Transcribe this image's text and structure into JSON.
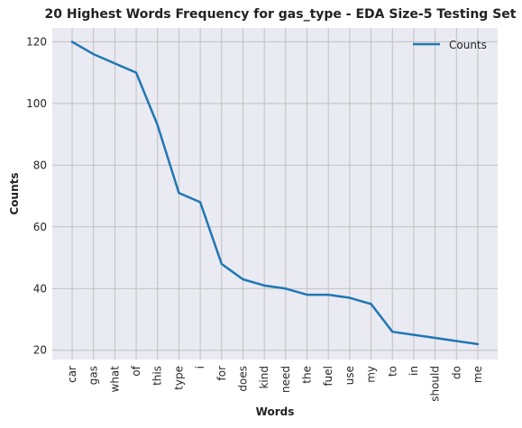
{
  "chart_data": {
    "type": "line",
    "title": "20 Highest Words Frequency for gas_type - EDA Size-5 Testing Set",
    "xlabel": "Words",
    "ylabel": "Counts",
    "categories": [
      "car",
      "gas",
      "what",
      "of",
      "this",
      "type",
      "i",
      "for",
      "does",
      "kind",
      "need",
      "the",
      "fuel",
      "use",
      "my",
      "to",
      "in",
      "should",
      "do",
      "me"
    ],
    "series": [
      {
        "name": "Counts",
        "color": "#1f77b4",
        "values": [
          120,
          116,
          113,
          110,
          93,
          71,
          68,
          48,
          43,
          41,
          40,
          38,
          38,
          37,
          35,
          26,
          25,
          24,
          23,
          22
        ]
      }
    ],
    "ylim": [
      17,
      124.5
    ],
    "yticks": [
      20,
      40,
      60,
      80,
      100,
      120
    ],
    "grid": true,
    "legend_position": "top-right",
    "background_color": "#eaeaf2",
    "grid_color": "#c0c0c0"
  }
}
